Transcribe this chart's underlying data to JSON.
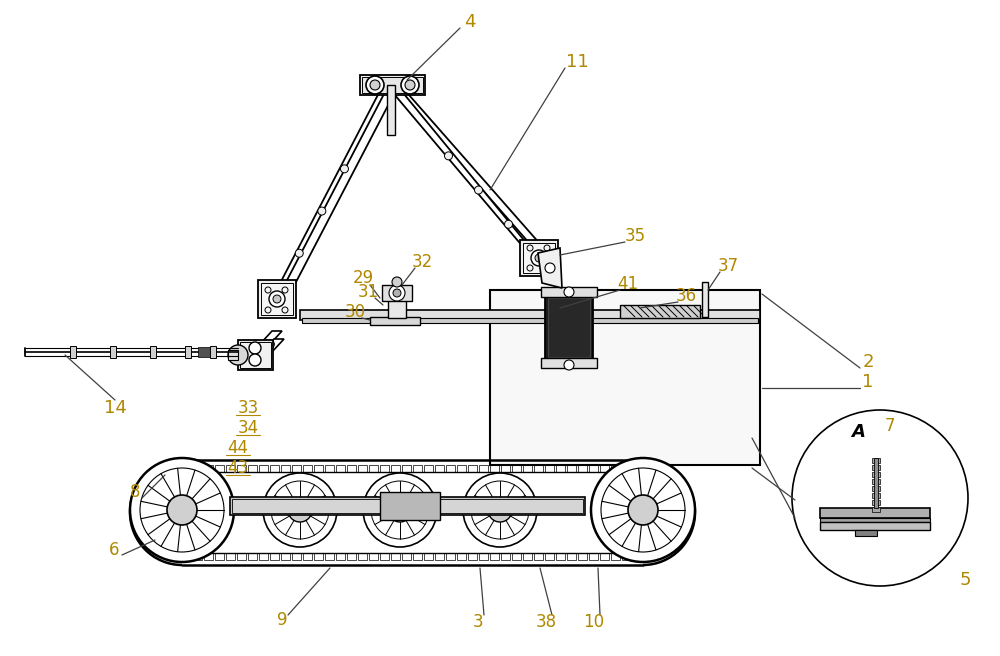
{
  "bg_color": "#ffffff",
  "line_color": "#000000",
  "label_color": "#b08800",
  "figsize": [
    10.0,
    6.56
  ],
  "dpi": 100
}
